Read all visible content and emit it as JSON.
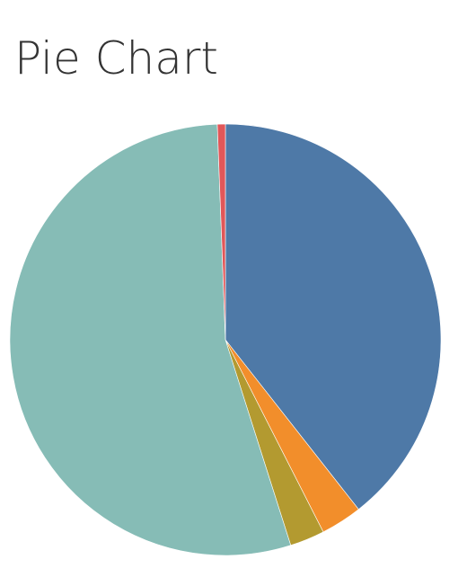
{
  "chart_data": {
    "type": "pie",
    "title": "Pie Chart",
    "values": [
      39.4,
      3.1,
      2.6,
      54.3,
      0.6
    ],
    "colors": [
      "#4e79a7",
      "#f28e2b",
      "#b39a30",
      "#86bcb6",
      "#e15759"
    ]
  }
}
